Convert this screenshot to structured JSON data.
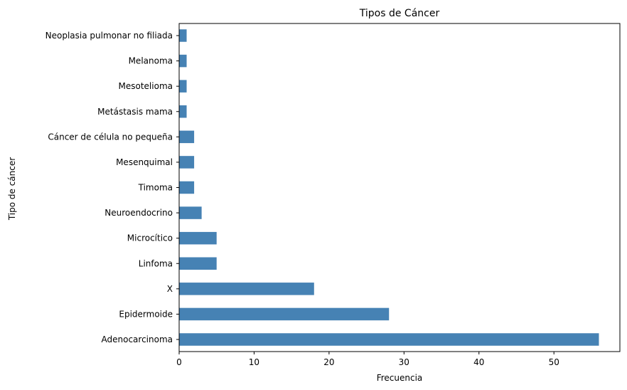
{
  "chart_data": {
    "type": "bar",
    "orientation": "horizontal",
    "title": "Tipos de Cáncer",
    "xlabel": "Frecuencia",
    "ylabel": "Tipo de cáncer",
    "categories": [
      "Adenocarcinoma",
      "Epidermoide",
      "X",
      "Linfoma",
      "Microcítico",
      "Neuroendocrino",
      "Timoma",
      "Mesenquimal",
      "Cáncer de célula no pequeña",
      "Metástasis mama",
      "Mesotelioma",
      "Melanoma",
      "Neoplasia pulmonar no filiada"
    ],
    "values": [
      56,
      28,
      18,
      5,
      5,
      3,
      2,
      2,
      2,
      1,
      1,
      1,
      1
    ],
    "xlim": [
      0,
      58.8
    ],
    "xticks": [
      0,
      10,
      20,
      30,
      40,
      50
    ],
    "grid": false,
    "bar_color": "#4682b4"
  }
}
